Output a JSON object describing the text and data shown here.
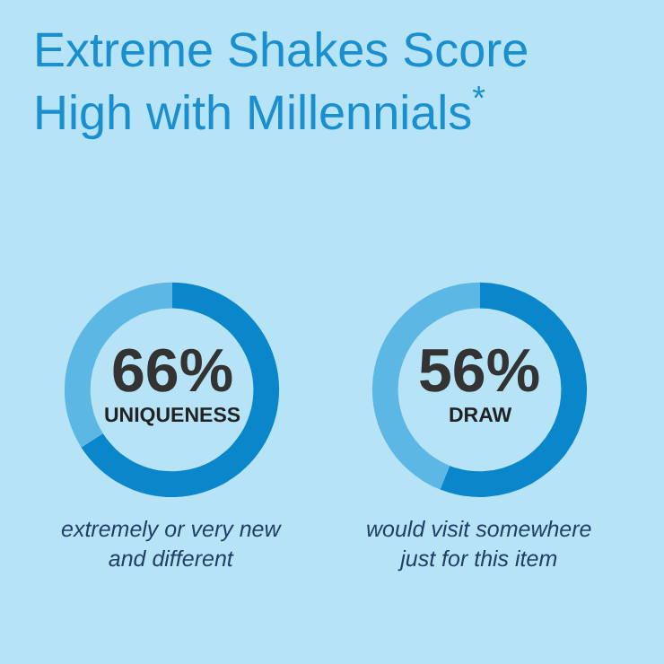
{
  "chart_data": [
    {
      "type": "donut",
      "title": "Extreme Shakes Score High with Millennials$^{*}$",
      "categories": [
        null,
        null
      ],
      "values": [
        66,
        34
      ],
      "colors": [
        "#0a87cb",
        "#5db7e4"
      ],
      "annotations": [
        "66%",
        "UNIQUENESS",
        "extremely or very new and different"
      ]
    },
    {
      "type": "donut",
      "categories": [
        null,
        null
      ],
      "values": [
        56,
        44
      ],
      "colors": [
        "#0a87cb",
        "#5db7e4"
      ],
      "annotations": [
        "56%",
        "DRAW",
        "would visit somewhere just for this item"
      ]
    }
  ]
}
